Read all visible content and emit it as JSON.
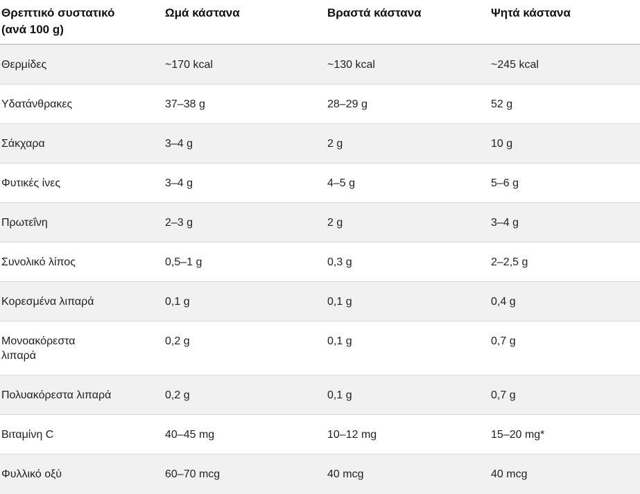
{
  "colors": {
    "text": "#1f1f1f",
    "header_text": "#111111",
    "stripe_row_background": "#f1f1f1",
    "row_border": "#d7d7d7",
    "header_border": "#cfcfcf",
    "page_background": "#ffffff"
  },
  "table": {
    "columns": [
      {
        "key": "nutrient",
        "label": "Θρεπτικό συστατικό (ανά 100 g)"
      },
      {
        "key": "raw",
        "label": "Ωμά κάστανα"
      },
      {
        "key": "boiled",
        "label": "Βραστά κάστανα"
      },
      {
        "key": "roasted",
        "label": "Ψητά κάστανα"
      }
    ],
    "rows": [
      {
        "nutrient": "Θερμίδες",
        "raw": "~170 kcal",
        "boiled": "~130 kcal",
        "roasted": "~245 kcal"
      },
      {
        "nutrient": "Υδατάνθρακες",
        "raw": "37–38 g",
        "boiled": "28–29 g",
        "roasted": "52 g"
      },
      {
        "nutrient": "Σάκχαρα",
        "raw": "3–4 g",
        "boiled": "2 g",
        "roasted": "10 g"
      },
      {
        "nutrient": "Φυτικές ίνες",
        "raw": "3–4 g",
        "boiled": "4–5 g",
        "roasted": "5–6 g"
      },
      {
        "nutrient": "Πρωτεΐνη",
        "raw": "2–3 g",
        "boiled": "2 g",
        "roasted": "3–4 g"
      },
      {
        "nutrient": "Συνολικό λίπος",
        "raw": "0,5–1 g",
        "boiled": "0,3 g",
        "roasted": "2–2,5 g"
      },
      {
        "nutrient": "Κορεσμένα λιπαρά",
        "raw": "0,1 g",
        "boiled": "0,1 g",
        "roasted": "0,4 g"
      },
      {
        "nutrient": "Μονοακόρεστα\nλιπαρά",
        "raw": "0,2 g",
        "boiled": "0,1 g",
        "roasted": "0,7 g"
      },
      {
        "nutrient": "Πολυακόρεστα λιπαρά",
        "raw": "0,2 g",
        "boiled": "0,1 g",
        "roasted": "0,7 g"
      },
      {
        "nutrient": "Βιταμίνη C",
        "raw": "40–45 mg",
        "boiled": "10–12 mg",
        "roasted": "15–20 mg*"
      },
      {
        "nutrient": "Φυλλικό οξύ",
        "raw": "60–70 mcg",
        "boiled": "40 mcg",
        "roasted": "40 mcg"
      }
    ]
  }
}
